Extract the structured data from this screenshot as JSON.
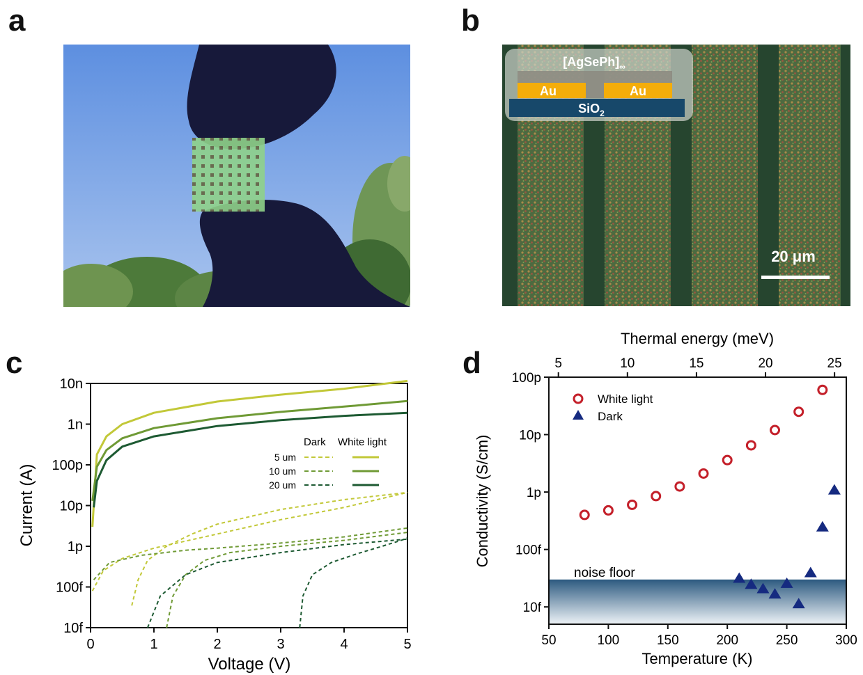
{
  "panels": {
    "a": {
      "label": "a"
    },
    "b": {
      "label": "b",
      "inset_top": "[AgSePh]",
      "inset_top_sub": "∞",
      "electrode_left": "Au",
      "electrode_right": "Au",
      "substrate": "SiO",
      "substrate_sub": "2",
      "scalebar_label": "20 μm"
    },
    "c": {
      "label": "c"
    },
    "d": {
      "label": "d",
      "noise_floor_label": "noise floor"
    }
  },
  "colors": {
    "sky": "#7fa7e6",
    "glove": "#17193a",
    "film": "#8fd18a",
    "au": "#f4ad0a",
    "sio2": "#17486a",
    "c_5um": "#c2c838",
    "c_10um": "#6f9a35",
    "c_20um": "#1d5a32",
    "white_light": "#c4202a",
    "dark": "#152a80"
  },
  "chart_data": [
    {
      "type": "line",
      "xlabel": "Voltage (V)",
      "ylabel": "Current (A)",
      "xlim": [
        0,
        5
      ],
      "ylim": [
        1e-14,
        1e-08
      ],
      "yscale": "log",
      "xticks": [
        0,
        1,
        2,
        3,
        4,
        5
      ],
      "xtick_labels": [
        "0",
        "1",
        "2",
        "3",
        "4",
        "5"
      ],
      "yticks": [
        1e-08,
        1e-09,
        1e-10,
        1e-11,
        1e-12,
        1e-13,
        1e-14
      ],
      "ytick_labels": [
        "10n",
        "1n",
        "100p",
        "10p",
        "1p",
        "100f",
        "10f"
      ],
      "legend": {
        "col_headers": [
          "Dark",
          "White light"
        ],
        "row_labels": [
          "5 um",
          "10 um",
          "20 um"
        ]
      },
      "series": [
        {
          "name": "5 um",
          "condition": "White light",
          "style": "solid",
          "x": [
            0.03,
            0.1,
            0.25,
            0.5,
            1,
            2,
            3,
            4,
            5
          ],
          "y": [
            3e-12,
            1.8e-10,
            5e-10,
            1e-09,
            1.9e-09,
            3.6e-09,
            5.3e-09,
            7.4e-09,
            1.15e-08
          ]
        },
        {
          "name": "10 um",
          "condition": "White light",
          "style": "solid",
          "x": [
            0.03,
            0.1,
            0.25,
            0.5,
            1,
            2,
            3,
            4,
            5
          ],
          "y": [
            1.3e-11,
            9e-11,
            2.3e-10,
            4.5e-10,
            8e-10,
            1.4e-09,
            2e-09,
            2.7e-09,
            3.7e-09
          ]
        },
        {
          "name": "20 um",
          "condition": "White light",
          "style": "solid",
          "x": [
            0.05,
            0.1,
            0.25,
            0.5,
            1,
            2,
            3,
            4,
            5
          ],
          "y": [
            9e-12,
            4e-11,
            1.3e-10,
            2.8e-10,
            5e-10,
            9e-10,
            1.25e-09,
            1.6e-09,
            1.9e-09
          ]
        },
        {
          "name": "5 um",
          "condition": "Dark",
          "style": "dashed",
          "x": [
            0.03,
            0.2,
            0.5,
            1,
            2,
            3,
            4,
            5
          ],
          "y": [
            8e-14,
            2.5e-13,
            5e-13,
            9e-13,
            2e-12,
            4.5e-12,
            9e-12,
            2.1e-11
          ]
        },
        {
          "name": "5 um",
          "condition": "Dark",
          "style": "dashed",
          "x": [
            0.65,
            0.75,
            0.9,
            1.2,
            1.6,
            2,
            3,
            4,
            5
          ],
          "y": [
            3.5e-14,
            1.5e-13,
            4.5e-13,
            1e-12,
            2e-12,
            3.5e-12,
            8e-12,
            1.4e-11,
            2.1e-11
          ]
        },
        {
          "name": "10 um",
          "condition": "Dark",
          "style": "dashed",
          "x": [
            0.05,
            0.3,
            0.8,
            1.5,
            2,
            3,
            4,
            5
          ],
          "y": [
            1.5e-13,
            4e-13,
            6e-13,
            8e-13,
            9e-13,
            1.2e-12,
            1.7e-12,
            2.8e-12
          ]
        },
        {
          "name": "10 um",
          "condition": "Dark",
          "style": "dashed",
          "x": [
            1.2,
            1.3,
            1.5,
            1.8,
            2.2,
            3,
            4,
            5
          ],
          "y": [
            1e-14,
            6e-14,
            2e-13,
            4.5e-13,
            7e-13,
            1e-12,
            1.4e-12,
            2.2e-12
          ]
        },
        {
          "name": "20 um",
          "condition": "Dark",
          "style": "dashed",
          "x": [
            0.9,
            1.1,
            1.5,
            2,
            3,
            4,
            5
          ],
          "y": [
            1e-14,
            6e-14,
            2e-13,
            4e-13,
            7e-13,
            1.1e-12,
            1.5e-12
          ]
        },
        {
          "name": "20 um",
          "condition": "Dark",
          "style": "dashed",
          "x": [
            3.3,
            3.35,
            3.5,
            3.8,
            4.2,
            4.6,
            4.9,
            5
          ],
          "y": [
            1e-14,
            6e-14,
            2e-13,
            4e-13,
            6.5e-13,
            1e-12,
            1.4e-12,
            1.6e-12
          ]
        }
      ]
    },
    {
      "type": "scatter",
      "xlabel": "Temperature (K)",
      "ylabel": "Conductivity (S/cm)",
      "top_xlabel": "Thermal energy (meV)",
      "xlim": [
        50,
        300
      ],
      "ylim": [
        5e-15,
        1e-10
      ],
      "yscale": "log",
      "xticks": [
        50,
        100,
        150,
        200,
        250,
        300
      ],
      "xtick_labels": [
        "50",
        "100",
        "150",
        "200",
        "250",
        "300"
      ],
      "top_xticks": [
        5,
        10,
        15,
        20,
        25
      ],
      "top_xtick_labels": [
        "5",
        "10",
        "15",
        "20",
        "25"
      ],
      "yticks": [
        1e-10,
        1e-11,
        1e-12,
        1e-13,
        1e-14
      ],
      "ytick_labels": [
        "100p",
        "10p",
        "1p",
        "100f",
        "10f"
      ],
      "noise_floor": 3e-14,
      "legend_position": "top-left",
      "series": [
        {
          "name": "White light",
          "marker": "circle",
          "x": [
            80,
            100,
            120,
            140,
            160,
            180,
            200,
            220,
            240,
            260,
            280
          ],
          "y": [
            4e-13,
            4.8e-13,
            6e-13,
            8.5e-13,
            1.25e-12,
            2.1e-12,
            3.6e-12,
            6.5e-12,
            1.2e-11,
            2.5e-11,
            6e-11
          ]
        },
        {
          "name": "Dark",
          "marker": "triangle",
          "x": [
            210,
            220,
            230,
            240,
            250,
            260,
            270,
            280,
            290
          ],
          "y": [
            3.2e-14,
            2.5e-14,
            2.1e-14,
            1.7e-14,
            2.6e-14,
            1.15e-14,
            4e-14,
            2.5e-13,
            1.1e-12
          ]
        }
      ]
    }
  ]
}
